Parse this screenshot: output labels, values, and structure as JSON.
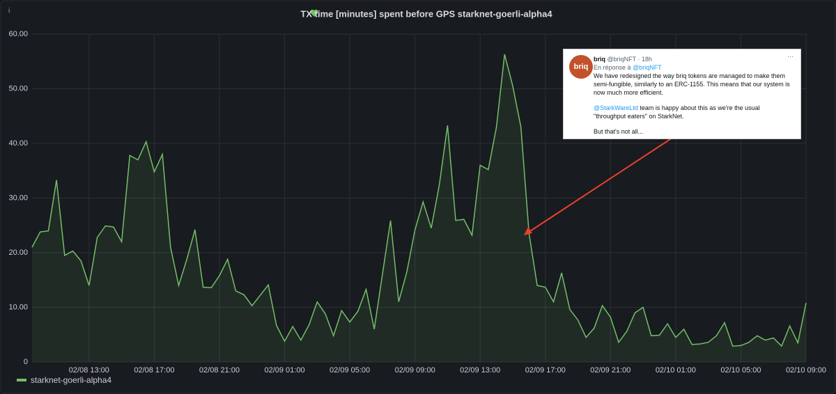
{
  "panel": {
    "info_icon": "i"
  },
  "chart_data": {
    "type": "line",
    "title": "TX time [minutes] spent before GPS starknet-goerli-alpha4",
    "x": [
      "02/08 09:30",
      "02/08 10:00",
      "02/08 10:30",
      "02/08 11:00",
      "02/08 11:30",
      "02/08 12:00",
      "02/08 12:30",
      "02/08 13:00",
      "02/08 13:30",
      "02/08 14:00",
      "02/08 14:30",
      "02/08 15:00",
      "02/08 15:30",
      "02/08 16:00",
      "02/08 16:30",
      "02/08 17:00",
      "02/08 17:30",
      "02/08 18:00",
      "02/08 18:30",
      "02/08 19:00",
      "02/08 19:30",
      "02/08 20:00",
      "02/08 20:30",
      "02/08 21:00",
      "02/08 21:30",
      "02/08 22:00",
      "02/08 22:30",
      "02/08 23:00",
      "02/08 23:30",
      "02/09 00:00",
      "02/09 00:30",
      "02/09 01:00",
      "02/09 01:30",
      "02/09 02:00",
      "02/09 02:30",
      "02/09 03:00",
      "02/09 03:30",
      "02/09 04:00",
      "02/09 04:30",
      "02/09 05:00",
      "02/09 05:30",
      "02/09 06:00",
      "02/09 06:30",
      "02/09 07:00",
      "02/09 07:30",
      "02/09 08:00",
      "02/09 08:30",
      "02/09 09:00",
      "02/09 09:30",
      "02/09 10:00",
      "02/09 10:30",
      "02/09 11:00",
      "02/09 11:30",
      "02/09 12:00",
      "02/09 12:30",
      "02/09 13:00",
      "02/09 13:30",
      "02/09 14:00",
      "02/09 14:30",
      "02/09 15:00",
      "02/09 15:30",
      "02/09 16:00",
      "02/09 16:30",
      "02/09 17:00",
      "02/09 17:30",
      "02/09 18:00",
      "02/09 18:30",
      "02/09 19:00",
      "02/09 19:30",
      "02/09 20:00",
      "02/09 20:30",
      "02/09 21:00",
      "02/09 21:30",
      "02/09 22:00",
      "02/09 22:30",
      "02/09 23:00",
      "02/09 23:30",
      "02/10 00:00",
      "02/10 00:30",
      "02/10 01:00",
      "02/10 01:30",
      "02/10 02:00",
      "02/10 02:30",
      "02/10 03:00",
      "02/10 03:30",
      "02/10 04:00",
      "02/10 04:30",
      "02/10 05:00",
      "02/10 05:30",
      "02/10 06:00",
      "02/10 06:30",
      "02/10 07:00",
      "02/10 07:30",
      "02/10 08:00",
      "02/10 08:30",
      "02/10 09:00"
    ],
    "series": [
      {
        "name": "starknet-goerli-alpha4",
        "color": "#73bf69",
        "values": [
          21.0,
          23.8,
          24.0,
          33.3,
          19.5,
          20.3,
          18.5,
          14.0,
          22.8,
          24.9,
          24.7,
          22.0,
          37.8,
          37.0,
          40.3,
          34.8,
          38.0,
          21.0,
          14.0,
          18.8,
          24.2,
          13.7,
          13.6,
          15.8,
          18.8,
          13.0,
          12.3,
          10.3,
          12.2,
          14.1,
          6.7,
          3.8,
          6.5,
          4.0,
          6.8,
          11.0,
          8.8,
          4.8,
          9.4,
          7.3,
          9.3,
          13.3,
          6.0,
          16.0,
          25.9,
          11.0,
          16.5,
          24.2,
          29.3,
          24.5,
          32.5,
          43.3,
          25.9,
          26.1,
          23.2,
          36.0,
          35.2,
          43.0,
          56.3,
          50.5,
          43.0,
          23.5,
          14.0,
          13.7,
          11.0,
          16.3,
          9.6,
          7.7,
          4.5,
          6.2,
          10.3,
          8.2,
          3.6,
          5.6,
          9.0,
          10.0,
          4.8,
          4.9,
          7.0,
          4.5,
          6.0,
          3.2,
          3.3,
          3.6,
          4.8,
          7.2,
          2.9,
          3.0,
          3.6,
          4.8,
          4.0,
          4.4,
          2.9,
          6.6,
          3.5,
          10.8
        ]
      }
    ],
    "xlim": [
      "02/08 09:30",
      "02/10 09:00"
    ],
    "xticks": [
      "02/08 13:00",
      "02/08 17:00",
      "02/08 21:00",
      "02/09 01:00",
      "02/09 05:00",
      "02/09 09:00",
      "02/09 13:00",
      "02/09 17:00",
      "02/09 21:00",
      "02/10 01:00",
      "02/10 05:00",
      "02/10 09:00"
    ],
    "ylim": [
      0,
      60
    ],
    "yticks": [
      0,
      {
        "value": 10,
        "label": "10.00"
      },
      {
        "value": 20,
        "label": "20.00"
      },
      {
        "value": 30,
        "label": "30.00"
      },
      {
        "value": 40,
        "label": "40.00"
      },
      {
        "value": 50,
        "label": "50.00"
      },
      {
        "value": 60,
        "label": "60.00"
      }
    ],
    "grid": true
  },
  "tweet": {
    "avatar": "briq",
    "name": "briq",
    "handle": "@briqNFT · 18h",
    "reply_prefix": "En réponse à",
    "reply_to": "@briqNFT",
    "body": [
      "We have redesigned the way briq tokens are managed to make them semi-fungible, similarly to an ERC-1155. This means that our system is now much more efficient."
    ],
    "mention": "@StarkWareLtd",
    "body2": "team is happy about this as we're the usual \"throughput eaters\" on StarkNet.",
    "body3": "But that's not all...",
    "more": "···"
  }
}
